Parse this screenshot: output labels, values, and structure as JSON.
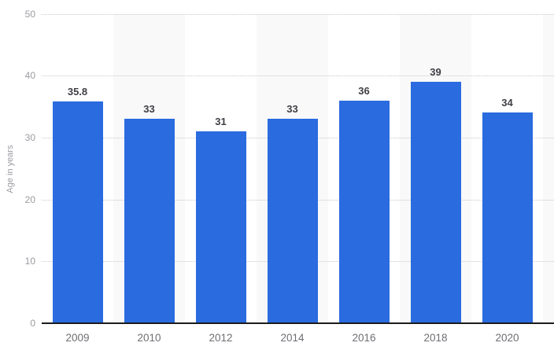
{
  "chart_data": {
    "type": "bar",
    "title": "",
    "xlabel": "",
    "ylabel": "Age in years",
    "categories": [
      "2009",
      "2010",
      "2012",
      "2014",
      "2016",
      "2018",
      "2020"
    ],
    "values": [
      35.8,
      33,
      31,
      33,
      36,
      39,
      34
    ],
    "value_labels": [
      "35.8",
      "33",
      "31",
      "33",
      "36",
      "39",
      "34"
    ],
    "ylim": [
      0,
      50
    ],
    "yticks": [
      0,
      10,
      20,
      30,
      40,
      50
    ],
    "grid": "horizontal dotted lines at each y tick, behind bars",
    "legend_position": "none",
    "plot_background": "alternating vertical bands behind every second category column",
    "colors": {
      "bar": "#2a6bdf",
      "band": "#f9f9fa",
      "gridline": "#c9c9cd",
      "axis_line": "#1c1c1e",
      "value_label_text": "#3f3f44",
      "x_tick_text": "#6e6e73",
      "y_tick_text": "#9b9ba1",
      "y_title_text": "#9b9ba1",
      "background": "#ffffff"
    }
  }
}
